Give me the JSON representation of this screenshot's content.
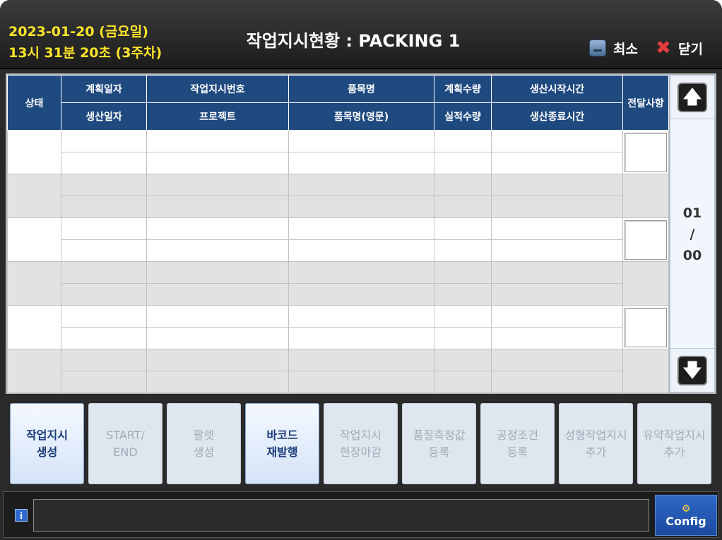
{
  "header": {
    "date": "2023-01-20 (금요일)",
    "time": "13시 31분 20초 (3주차)",
    "title": "작업지시현황 : PACKING 1",
    "minimize_label": "최소",
    "close_label": "닫기"
  },
  "grid": {
    "col_status": "상태",
    "col_plan_date": "계획일자",
    "col_prod_date": "생산일자",
    "col_order_no": "작업지시번호",
    "col_project": "프로젝트",
    "col_item": "품목명",
    "col_item_en": "품목명(영문)",
    "col_plan_qty": "계획수량",
    "col_actual_qty": "실적수량",
    "col_start_time": "생산시작시간",
    "col_end_time": "생산종료시간",
    "col_message": "전달사항"
  },
  "pager": {
    "current": "01",
    "separator": "/",
    "total": "00"
  },
  "actions": [
    {
      "line1": "작업지시",
      "line2": "생성",
      "enabled": true
    },
    {
      "line1": "START/",
      "line2": "END",
      "enabled": false
    },
    {
      "line1": "팔렛",
      "line2": "생성",
      "enabled": false
    },
    {
      "line1": "바코드",
      "line2": "재발행",
      "enabled": true
    },
    {
      "line1": "작업지시",
      "line2": "현장마감",
      "enabled": false
    },
    {
      "line1": "품질측정값",
      "line2": "등록",
      "enabled": false
    },
    {
      "line1": "공정조건",
      "line2": "등록",
      "enabled": false
    },
    {
      "line1": "성형작업지시",
      "line2": "추가",
      "enabled": false
    },
    {
      "line1": "유약작업지시",
      "line2": "추가",
      "enabled": false
    }
  ],
  "statusbar": {
    "message": "",
    "config_label": "Config"
  },
  "colors": {
    "date_text": "#ffe52a",
    "grid_header": "#1f4a80",
    "config_button": "#2f68c6"
  }
}
